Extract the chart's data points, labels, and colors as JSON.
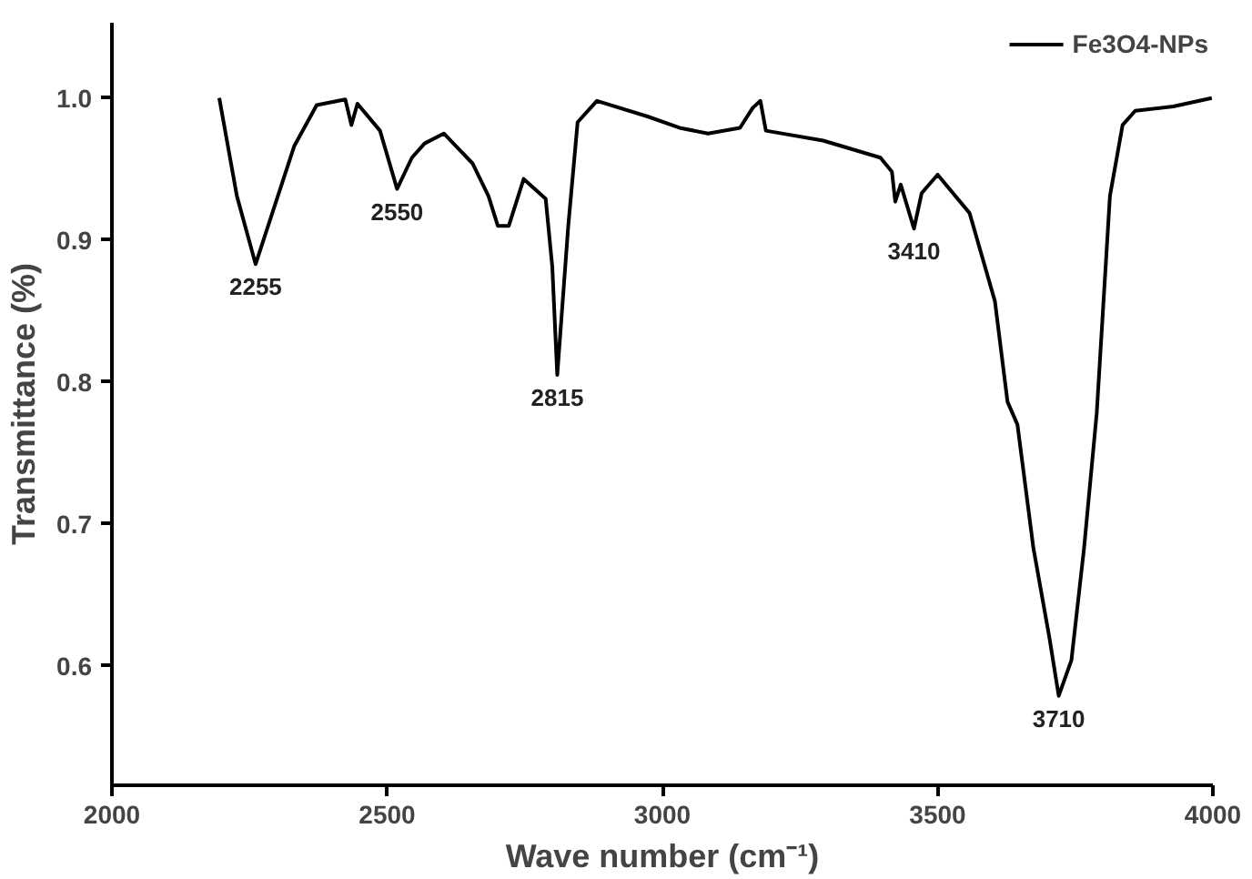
{
  "chart_data": {
    "type": "line",
    "xlabel": "Wave number (cm⁻¹)",
    "ylabel": "Transmittance (%)",
    "xlim": [
      2000,
      4000
    ],
    "ylim": [
      0.516,
      1.053
    ],
    "xticks": [
      2000,
      2500,
      3000,
      3500,
      4000
    ],
    "yticks": [
      {
        "value": 0.6,
        "label": "0.6"
      },
      {
        "value": 0.7,
        "label": "0.7"
      },
      {
        "value": 0.8,
        "label": "0.8"
      },
      {
        "value": 0.9,
        "label": "0.9"
      },
      {
        "value": 1.0,
        "label": "1.0"
      }
    ],
    "grid": false,
    "legend": "top right",
    "marker": "none",
    "line_style": "solid",
    "series": [
      {
        "name": "Fe3O4-NPs",
        "color": "#000000",
        "x": [
          2195,
          2227,
          2261,
          2288,
          2331,
          2372,
          2424,
          2435,
          2446,
          2487,
          2518,
          2545,
          2568,
          2603,
          2655,
          2684,
          2701,
          2721,
          2748,
          2788,
          2800,
          2809,
          2829,
          2846,
          2881,
          2973,
          3031,
          3083,
          3141,
          3164,
          3178,
          3188,
          3292,
          3396,
          3417,
          3423,
          3433,
          3457,
          3471,
          3500,
          3558,
          3604,
          3627,
          3645,
          3674,
          3703,
          3720,
          3743,
          3766,
          3789,
          3813,
          3836,
          3859,
          3928,
          3998
        ],
        "values": [
          1.0,
          0.931,
          0.883,
          0.915,
          0.966,
          0.995,
          0.999,
          0.981,
          0.996,
          0.977,
          0.936,
          0.958,
          0.968,
          0.975,
          0.954,
          0.931,
          0.91,
          0.91,
          0.943,
          0.929,
          0.881,
          0.805,
          0.91,
          0.983,
          0.998,
          0.987,
          0.979,
          0.975,
          0.979,
          0.993,
          0.998,
          0.977,
          0.97,
          0.958,
          0.948,
          0.927,
          0.939,
          0.908,
          0.933,
          0.946,
          0.919,
          0.857,
          0.786,
          0.77,
          0.683,
          0.62,
          0.579,
          0.604,
          0.683,
          0.778,
          0.931,
          0.981,
          0.991,
          0.994,
          1.0
        ]
      }
    ],
    "annotations": [
      {
        "text": "2255",
        "x": 2261,
        "y": 0.883
      },
      {
        "text": "2550",
        "x": 2518,
        "y": 0.936
      },
      {
        "text": "2815",
        "x": 2809,
        "y": 0.805
      },
      {
        "text": "3410",
        "x": 3457,
        "y": 0.908
      },
      {
        "text": "3710",
        "x": 3720,
        "y": 0.579
      }
    ]
  }
}
